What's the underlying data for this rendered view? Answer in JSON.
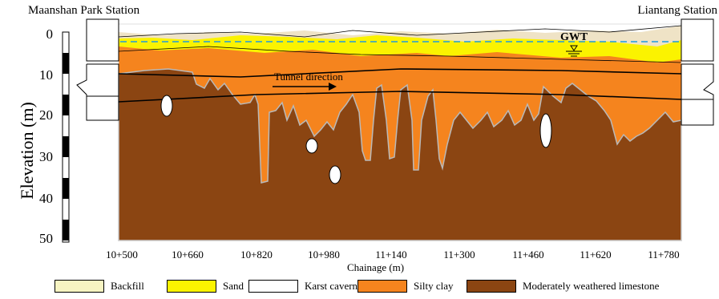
{
  "stations": {
    "left": "Maanshan Park Station",
    "right": "Liantang Station"
  },
  "y_axis": {
    "title": "Elevation (m)",
    "ticks": [
      "0",
      "10",
      "20",
      "30",
      "40",
      "50"
    ]
  },
  "x_axis": {
    "title": "Chainage (m)",
    "ticks": [
      "10+500",
      "10+660",
      "10+820",
      "10+980",
      "11+140",
      "11+300",
      "11+460",
      "11+620",
      "11+780"
    ]
  },
  "annotations": {
    "tunnel_direction": "Tunnel direction",
    "gwt": "GWT"
  },
  "legend": [
    {
      "label": "Backfill",
      "color": "#f7f4c2"
    },
    {
      "label": "Sand",
      "color": "#fbf300"
    },
    {
      "label": "Karst cavern",
      "color": "#ffffff"
    },
    {
      "label": "Silty clay",
      "color": "#f5841e"
    },
    {
      "label": "Moderately weathered limestone",
      "color": "#8b4512"
    }
  ],
  "colors": {
    "groundwater_line": "#1f9be0",
    "layer_outline": "#000000",
    "cavern_edge": "#b9b9b9"
  }
}
